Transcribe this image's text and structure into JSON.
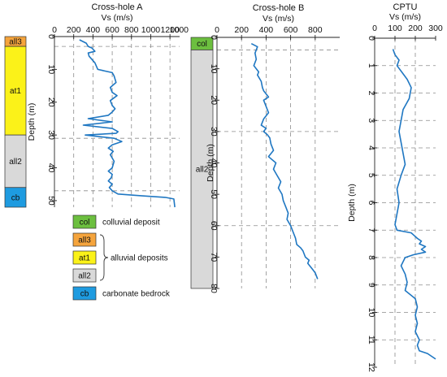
{
  "colors": {
    "profile_line": "#1f77c2",
    "col": "#6cbf3f",
    "all3": "#f5a43c",
    "at1": "#fbf219",
    "all2": "#d9d9d9",
    "cb": "#1e9be0",
    "grid": "#8c8c8c"
  },
  "legend": {
    "items": [
      {
        "code": "col",
        "label": "colluvial deposit",
        "color_key": "col"
      },
      {
        "code": "all3",
        "label": "",
        "color_key": "all3"
      },
      {
        "code": "at1",
        "label": "",
        "color_key": "at1"
      },
      {
        "code": "all2",
        "label": "",
        "color_key": "all2"
      },
      {
        "code": "cb",
        "label": "carbonate bedrock",
        "color_key": "cb"
      }
    ],
    "group_label": "alluvial deposits",
    "group_codes": [
      "all3",
      "at1",
      "all2"
    ]
  },
  "chart_data": [
    {
      "id": "cross-hole-a",
      "type": "line",
      "title": "Cross-hole A",
      "xlabel": "Vs (m/s)",
      "ylabel": "Depth (m)",
      "xlim": [
        0,
        1300
      ],
      "x_ticks": [
        0,
        200,
        400,
        600,
        800,
        1000,
        1200
      ],
      "ylim": [
        0,
        52
      ],
      "y_ticks": [
        0,
        10,
        20,
        30,
        40,
        50
      ],
      "grid_x": [
        200,
        400,
        600,
        800,
        1000,
        1200
      ],
      "grid_y": [
        3,
        31,
        47
      ],
      "x_axis_position": "top",
      "series": [
        {
          "x": [
            260,
            330,
            350,
            390,
            420,
            350,
            360,
            420,
            450,
            600,
            620,
            640,
            580,
            600,
            650,
            580,
            600,
            630,
            600,
            560,
            350,
            600,
            300,
            600,
            660,
            640,
            320,
            620,
            700,
            600,
            560,
            610,
            580,
            620,
            600,
            560,
            600,
            590,
            560,
            600,
            570,
            600,
            660,
            900,
            1150,
            1240,
            1250
          ],
          "y": [
            1,
            2,
            3,
            3.5,
            4.5,
            5,
            6,
            8,
            10,
            11,
            12,
            14,
            15.5,
            17,
            18,
            19.5,
            21,
            22,
            23,
            24,
            25,
            26,
            27,
            28,
            29,
            29.5,
            30,
            31,
            32,
            33,
            34,
            35,
            36,
            38,
            40,
            41,
            42,
            43,
            44,
            45,
            46,
            47,
            48,
            48.5,
            49,
            49.5,
            52
          ]
        }
      ],
      "strata": [
        {
          "code": "all3",
          "top": 0,
          "bottom": 3,
          "color_key": "all3"
        },
        {
          "code": "at1",
          "top": 3,
          "bottom": 30,
          "color_key": "at1"
        },
        {
          "code": "all2",
          "top": 30,
          "bottom": 46,
          "color_key": "all2"
        },
        {
          "code": "cb",
          "top": 46,
          "bottom": 52,
          "color_key": "cb"
        }
      ]
    },
    {
      "id": "cross-hole-b",
      "type": "line",
      "title": "Cross-hole B",
      "xlabel": "Vs (m/s)",
      "ylabel": "Depth (m)",
      "xlim": [
        0,
        1000
      ],
      "x_ticks": [
        0,
        200,
        400,
        600,
        800
      ],
      "x_extra_ticks": [
        1000
      ],
      "ylim": [
        0,
        80
      ],
      "y_ticks": [
        0,
        10,
        20,
        30,
        40,
        50,
        60,
        70,
        80
      ],
      "grid_x": [
        200,
        400,
        600,
        800
      ],
      "grid_y": [
        4,
        30,
        60
      ],
      "x_axis_position": "top",
      "series": [
        {
          "x": [
            280,
            330,
            310,
            320,
            300,
            340,
            330,
            360,
            370,
            380,
            420,
            380,
            400,
            420,
            380,
            360,
            400,
            380,
            410,
            430,
            440,
            460,
            420,
            480,
            460,
            490,
            520,
            500,
            530,
            540,
            560,
            580,
            570,
            600,
            620,
            640,
            650,
            680,
            700,
            710,
            720,
            750,
            740,
            760,
            780,
            800,
            820
          ],
          "y": [
            2,
            3,
            5,
            7,
            9,
            11,
            12,
            14,
            16,
            17,
            19,
            20,
            22,
            24,
            26,
            28,
            29,
            30,
            31,
            32,
            34,
            36,
            38,
            40,
            42,
            44,
            46,
            48,
            50,
            52,
            54,
            56,
            58,
            60,
            62,
            64,
            66,
            67,
            68,
            69,
            70,
            71,
            72,
            73,
            74,
            75,
            77
          ]
        }
      ],
      "strata": [
        {
          "code": "col",
          "top": 0,
          "bottom": 4,
          "color_key": "col"
        },
        {
          "code": "all2",
          "top": 4,
          "bottom": 80,
          "color_key": "all2"
        }
      ]
    },
    {
      "id": "cptu",
      "type": "line",
      "title": "CPTU",
      "xlabel": "Vs (m/s)",
      "ylabel": "Depth (m)",
      "xlim": [
        0,
        300
      ],
      "x_ticks": [
        0,
        100,
        200,
        300
      ],
      "ylim": [
        0,
        12
      ],
      "y_ticks": [
        0,
        1,
        2,
        3,
        4,
        5,
        6,
        7,
        8,
        9,
        10,
        11,
        12
      ],
      "grid_x": [
        100,
        200
      ],
      "grid_y": [
        1,
        2,
        3,
        4,
        5,
        6,
        7,
        8,
        9,
        10,
        11
      ],
      "x_axis_position": "top",
      "series": [
        {
          "x": [
            90,
            100,
            120,
            110,
            130,
            160,
            180,
            170,
            140,
            130,
            120,
            130,
            140,
            150,
            130,
            110,
            120,
            110,
            100,
            110,
            180,
            210,
            230,
            220,
            250,
            230,
            250,
            190,
            150,
            130,
            150,
            160,
            150,
            200,
            210,
            200,
            210,
            200,
            220,
            210,
            220,
            260,
            300
          ],
          "y": [
            0.4,
            0.6,
            0.8,
            1,
            1.2,
            1.5,
            1.8,
            2.2,
            2.6,
            3,
            3.4,
            3.8,
            4.2,
            4.6,
            5,
            5.5,
            6,
            6.4,
            6.8,
            7,
            7.1,
            7.3,
            7.4,
            7.5,
            7.6,
            7.7,
            7.8,
            7.9,
            8,
            8.3,
            8.6,
            8.9,
            9.2,
            9.5,
            9.8,
            10.1,
            10.4,
            10.7,
            11,
            11.2,
            11.4,
            11.5,
            11.7
          ]
        }
      ]
    }
  ]
}
